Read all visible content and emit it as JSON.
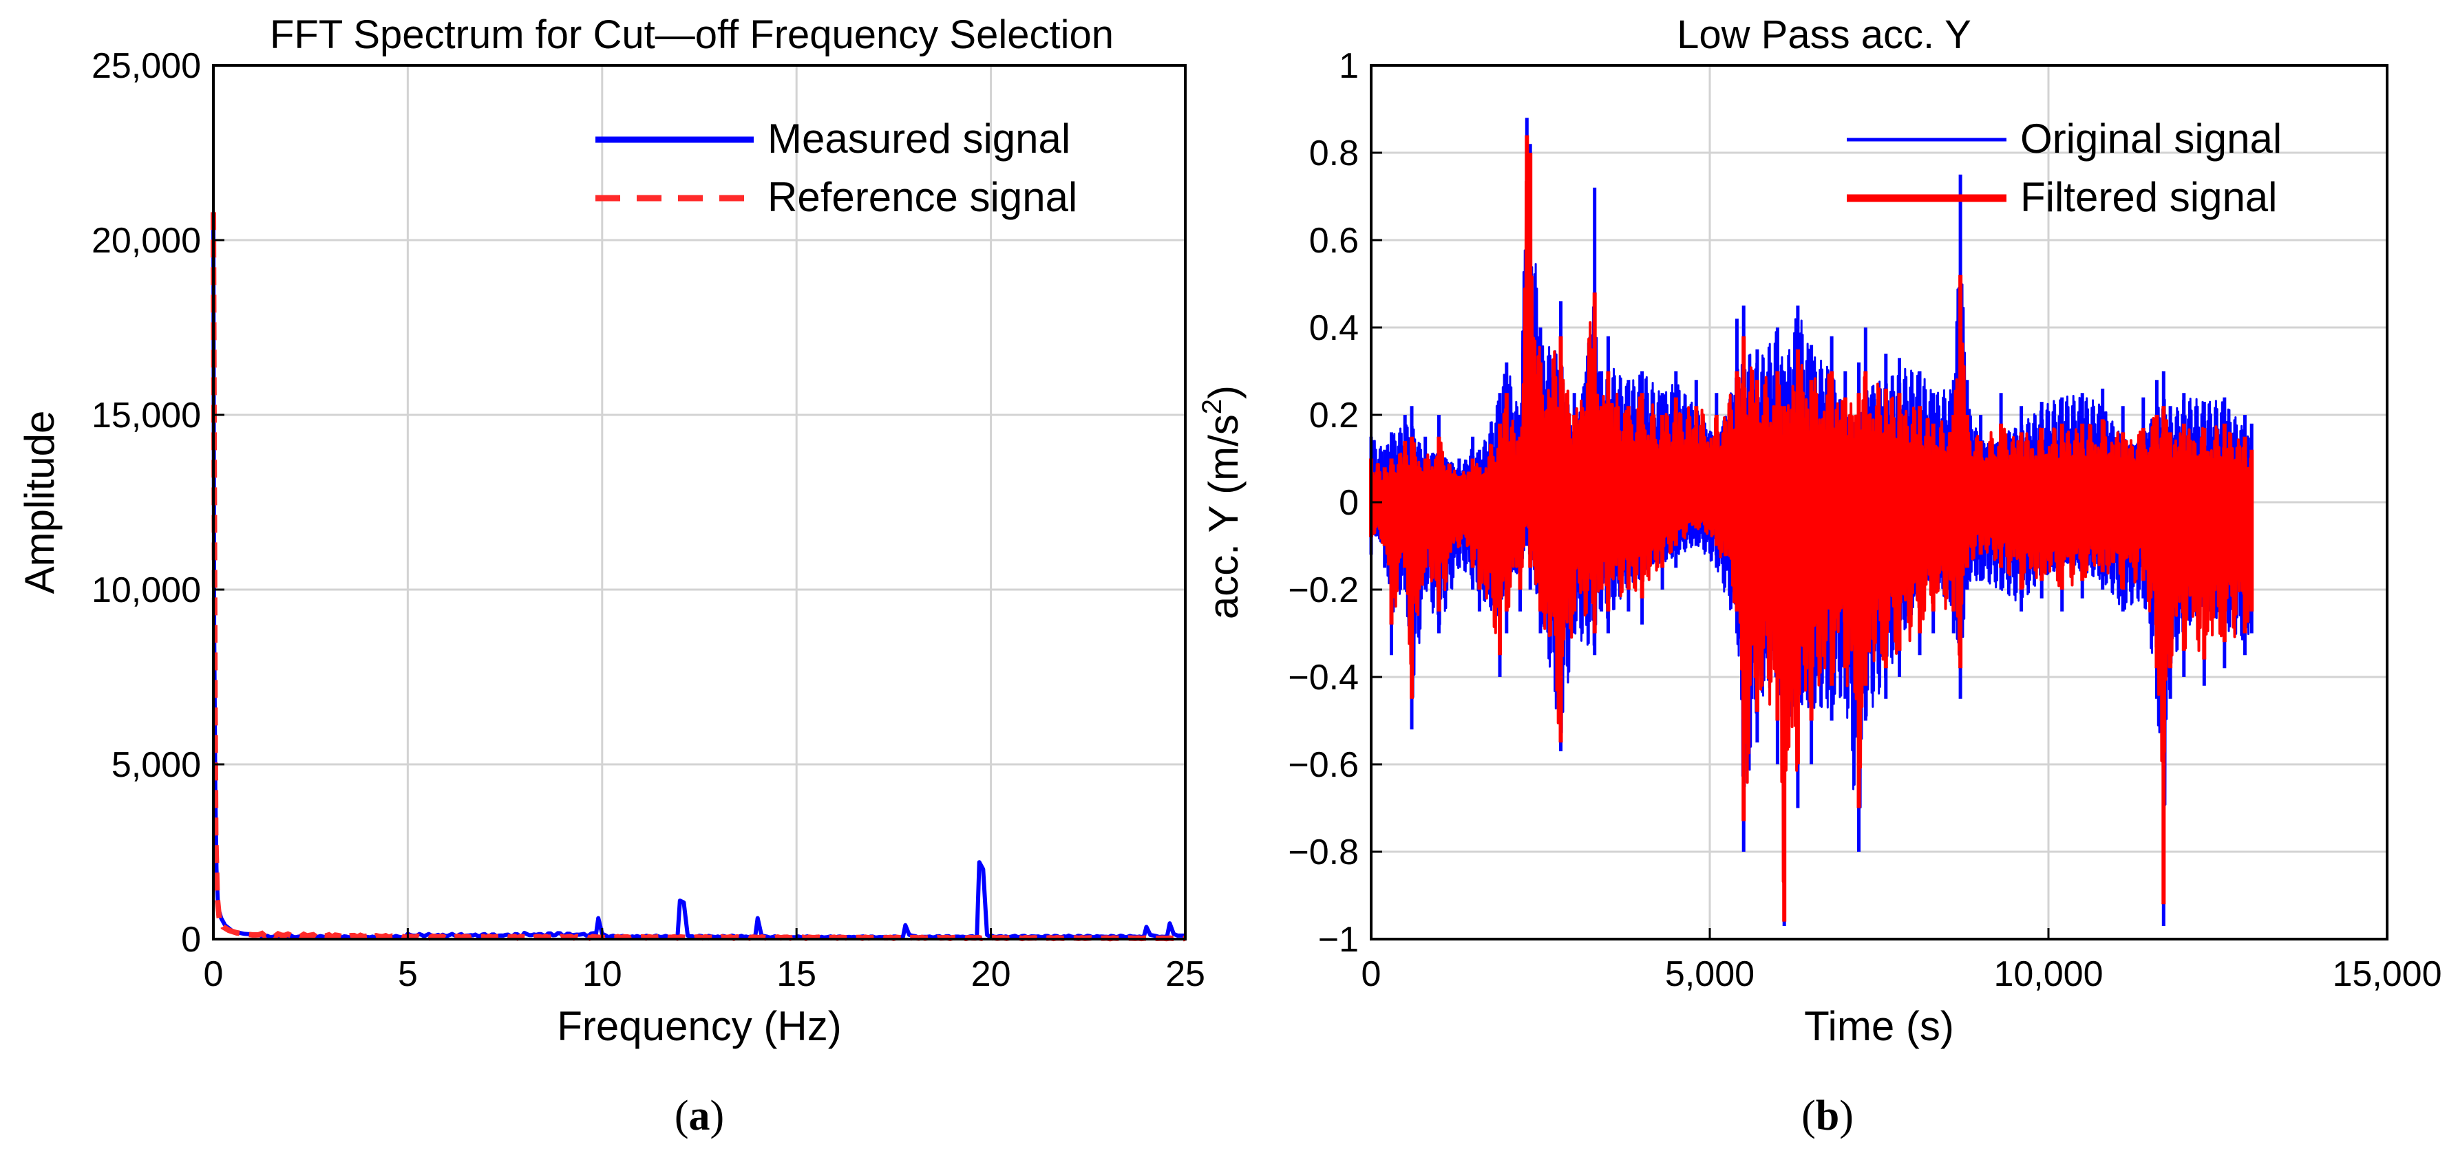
{
  "colors": {
    "measured": "#0000ff",
    "reference": "#ff2a2a",
    "original": "#0000ff",
    "filtered": "#ff0000",
    "grid": "#d3d3d3",
    "axis": "#000000"
  },
  "panels": {
    "a": {
      "label": "a",
      "paren_open": "(",
      "paren_close": ")"
    },
    "b": {
      "label": "b",
      "paren_open": "(",
      "paren_close": ")"
    }
  },
  "chart_data": [
    {
      "type": "line",
      "title": "FFT Spectrum for Cut—off Frequency Selection",
      "xlabel": "Frequency (Hz)",
      "ylabel": "Amplitude",
      "xlim": [
        0,
        25
      ],
      "ylim": [
        0,
        25000
      ],
      "xticks": [
        0,
        5,
        10,
        15,
        20,
        25
      ],
      "xtick_labels": [
        "0",
        "5",
        "10",
        "15",
        "20",
        "25"
      ],
      "yticks": [
        0,
        5000,
        10000,
        15000,
        20000,
        25000
      ],
      "ytick_labels": [
        "0",
        "5,000",
        "10,000",
        "15,000",
        "20,000",
        "25,000"
      ],
      "grid": true,
      "legend_position": "top-right",
      "series": [
        {
          "name": "Measured signal",
          "style": "solid",
          "x": [
            0,
            0.02,
            0.05,
            0.08,
            0.12,
            0.2,
            0.3,
            0.5,
            0.8,
            1.2,
            2,
            3,
            5,
            8,
            9.9,
            10,
            10.1,
            12,
            12.1,
            12.2,
            14,
            14.1,
            14.2,
            17.8,
            17.9,
            18,
            19.7,
            19.8,
            19.9,
            22,
            24,
            24.1,
            24.2,
            24.6,
            24.7,
            24.8,
            25
          ],
          "y": [
            20500,
            9000,
            4300,
            2000,
            900,
            600,
            400,
            220,
            150,
            120,
            100,
            90,
            150,
            180,
            600,
            150,
            100,
            1100,
            1050,
            100,
            600,
            100,
            80,
            400,
            120,
            90,
            2200,
            2000,
            120,
            100,
            350,
            120,
            100,
            450,
            150,
            100,
            100
          ]
        },
        {
          "name": "Reference signal",
          "style": "dashed",
          "x": [
            0,
            0.02,
            0.04,
            0.06,
            0.1,
            0.15,
            0.25,
            0.4,
            0.6,
            1,
            2,
            5,
            10,
            15,
            20,
            25
          ],
          "y": [
            20800,
            14000,
            7000,
            3000,
            1200,
            600,
            350,
            250,
            180,
            120,
            100,
            60,
            50,
            40,
            30,
            20
          ]
        }
      ]
    },
    {
      "type": "line",
      "title": "Low Pass acc. Y",
      "xlabel": "Time (s)",
      "ylabel": "acc.  Y  (m/s",
      "ylabel_sup": "2",
      "ylabel_tail": ")",
      "xlim": [
        0,
        15000
      ],
      "ylim": [
        -1,
        1
      ],
      "xticks": [
        0,
        5000,
        10000,
        15000
      ],
      "xtick_labels": [
        "0",
        "5,000",
        "10,000",
        "15,000"
      ],
      "yticks": [
        -1,
        -0.8,
        -0.6,
        -0.4,
        -0.2,
        0,
        0.2,
        0.4,
        0.6,
        0.8,
        1
      ],
      "ytick_labels": [
        "−1",
        "−0.8",
        "−0.6",
        "−0.4",
        "−0.2",
        "0",
        "0.2",
        "0.4",
        "0.6",
        "0.8",
        "1"
      ],
      "grid": true,
      "legend_position": "top-right",
      "series": [
        {
          "name": "Original signal",
          "x": [
            0,
            200,
            300,
            500,
            600,
            800,
            1000,
            1300,
            1500,
            1600,
            1900,
            2000,
            2200,
            2300,
            2350,
            2500,
            2800,
            3000,
            3300,
            3400,
            3500,
            3800,
            4000,
            4300,
            4500,
            4800,
            5100,
            5400,
            5500,
            5700,
            6000,
            6100,
            6300,
            6500,
            6800,
            7000,
            7200,
            7300,
            7600,
            7800,
            8100,
            8300,
            8600,
            8700,
            8800,
            9000,
            9300,
            9600,
            9900,
            10200,
            10500,
            10800,
            11100,
            11400,
            11600,
            11700,
            11800,
            12000,
            12300,
            12600,
            12900,
            13000
          ],
          "upper": [
            0.15,
            0.12,
            0.16,
            0.2,
            0.22,
            0.15,
            0.2,
            0.1,
            0.15,
            0.12,
            0.25,
            0.32,
            0.2,
            0.88,
            0.82,
            0.4,
            0.46,
            0.25,
            0.72,
            0.3,
            0.38,
            0.28,
            0.3,
            0.25,
            0.3,
            0.28,
            0.25,
            0.42,
            0.45,
            0.35,
            0.4,
            0.3,
            0.45,
            0.36,
            0.38,
            0.3,
            0.32,
            0.4,
            0.34,
            0.33,
            0.3,
            0.25,
            0.28,
            0.75,
            0.28,
            0.2,
            0.25,
            0.22,
            0.23,
            0.24,
            0.25,
            0.26,
            0.22,
            0.24,
            0.28,
            0.3,
            0.22,
            0.25,
            0.23,
            0.24,
            0.2,
            0.18
          ],
          "lower": [
            -0.12,
            -0.15,
            -0.35,
            -0.2,
            -0.52,
            -0.2,
            -0.3,
            -0.15,
            -0.2,
            -0.25,
            -0.4,
            -0.3,
            -0.25,
            -0.1,
            -0.2,
            -0.3,
            -0.57,
            -0.3,
            -0.35,
            -0.25,
            -0.3,
            -0.25,
            -0.28,
            -0.2,
            -0.15,
            -0.1,
            -0.15,
            -0.3,
            -0.8,
            -0.55,
            -0.6,
            -0.97,
            -0.7,
            -0.6,
            -0.5,
            -0.45,
            -0.8,
            -0.5,
            -0.45,
            -0.4,
            -0.35,
            -0.3,
            -0.3,
            -0.45,
            -0.2,
            -0.18,
            -0.2,
            -0.25,
            -0.22,
            -0.25,
            -0.22,
            -0.2,
            -0.25,
            -0.22,
            -0.45,
            -0.97,
            -0.45,
            -0.4,
            -0.42,
            -0.38,
            -0.35,
            -0.3
          ]
        },
        {
          "name": "Filtered signal",
          "x": [
            0,
            200,
            300,
            500,
            600,
            800,
            1000,
            1300,
            1500,
            1600,
            1900,
            2000,
            2200,
            2300,
            2350,
            2500,
            2800,
            3000,
            3300,
            3400,
            3500,
            3800,
            4000,
            4300,
            4500,
            4800,
            5100,
            5400,
            5500,
            5700,
            6000,
            6100,
            6300,
            6500,
            6800,
            7000,
            7200,
            7300,
            7600,
            7800,
            8100,
            8300,
            8600,
            8700,
            8800,
            9000,
            9300,
            9600,
            9900,
            10200,
            10500,
            10800,
            11100,
            11400,
            11600,
            11700,
            11800,
            12000,
            12300,
            12600,
            12900,
            13000
          ],
          "upper": [
            0.1,
            0.08,
            0.1,
            0.14,
            0.15,
            0.1,
            0.15,
            0.06,
            0.1,
            0.08,
            0.18,
            0.25,
            0.15,
            0.84,
            0.8,
            0.32,
            0.38,
            0.2,
            0.48,
            0.22,
            0.3,
            0.22,
            0.25,
            0.2,
            0.24,
            0.22,
            0.2,
            0.3,
            0.38,
            0.28,
            0.3,
            0.22,
            0.35,
            0.28,
            0.3,
            0.24,
            0.25,
            0.3,
            0.26,
            0.25,
            0.22,
            0.18,
            0.2,
            0.52,
            0.2,
            0.14,
            0.18,
            0.16,
            0.17,
            0.18,
            0.18,
            0.19,
            0.16,
            0.17,
            0.2,
            0.22,
            0.16,
            0.18,
            0.17,
            0.18,
            0.15,
            0.12
          ],
          "lower": [
            -0.08,
            -0.1,
            -0.28,
            -0.15,
            -0.45,
            -0.15,
            -0.25,
            -0.1,
            -0.15,
            -0.2,
            -0.35,
            -0.25,
            -0.2,
            -0.05,
            -0.15,
            -0.25,
            -0.55,
            -0.25,
            -0.3,
            -0.2,
            -0.25,
            -0.2,
            -0.22,
            -0.15,
            -0.1,
            -0.06,
            -0.1,
            -0.25,
            -0.73,
            -0.48,
            -0.5,
            -0.96,
            -0.6,
            -0.5,
            -0.42,
            -0.38,
            -0.7,
            -0.42,
            -0.38,
            -0.34,
            -0.3,
            -0.25,
            -0.25,
            -0.38,
            -0.15,
            -0.12,
            -0.15,
            -0.2,
            -0.18,
            -0.2,
            -0.18,
            -0.16,
            -0.2,
            -0.18,
            -0.38,
            -0.92,
            -0.38,
            -0.34,
            -0.36,
            -0.32,
            -0.3,
            -0.25
          ]
        }
      ]
    }
  ]
}
